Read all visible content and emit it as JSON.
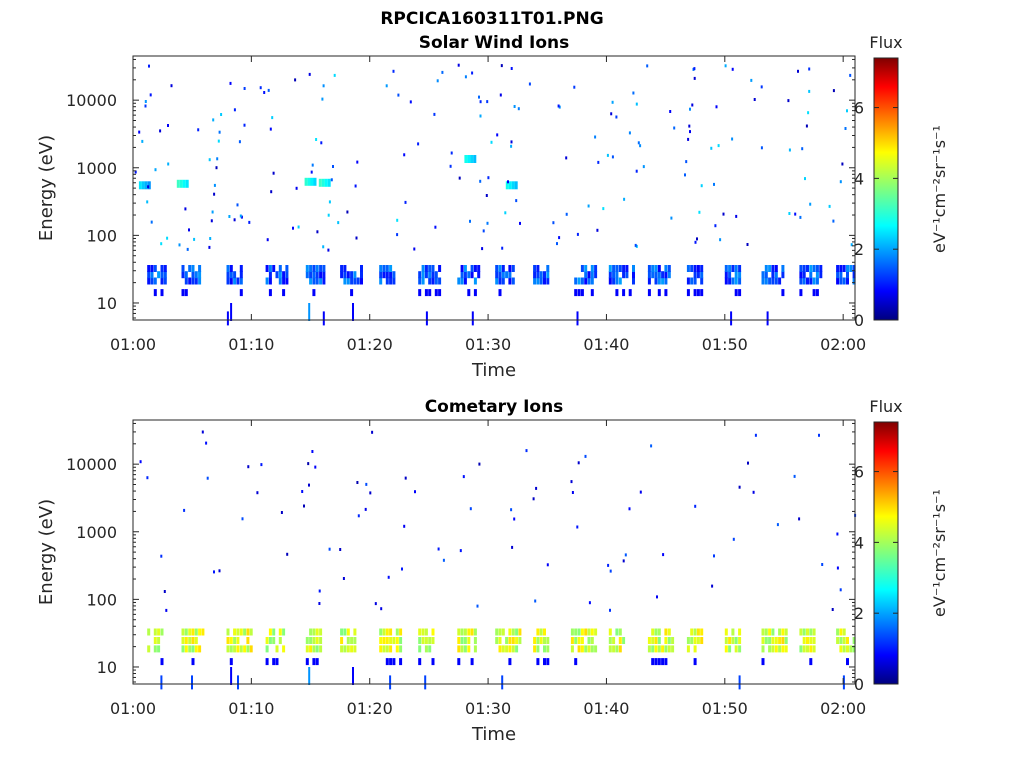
{
  "figure_title": "RPCICA160311T01.PNG",
  "colors": {
    "axis": "#262626",
    "background": "#ffffff",
    "colormap": "jet"
  },
  "chart_data": [
    {
      "type": "heatmap",
      "title": "Solar Wind Ions",
      "xlabel": "Time",
      "ylabel": "Energy (eV)",
      "x_range": [
        "01:00",
        "02:01"
      ],
      "x_ticks": [
        "01:00",
        "01:10",
        "01:20",
        "01:30",
        "01:40",
        "01:50",
        "02:00"
      ],
      "y_scale": "log",
      "y_range": [
        5.6,
        45000
      ],
      "y_ticks": [
        10,
        100,
        1000,
        10000
      ],
      "y_tick_labels": [
        "10",
        "100",
        "1000",
        "10000"
      ],
      "colorbar": {
        "label": "Flux",
        "units": "eV⁻¹cm⁻²sr⁻¹s⁻¹",
        "range": [
          0,
          7.4
        ],
        "ticks": [
          0,
          2,
          4,
          6
        ]
      },
      "bands": [
        {
          "energy_min": 19,
          "energy_max": 36,
          "flux": 1.5,
          "note": "main solar wind band, periodic ~2.5 min bursts"
        }
      ],
      "burst_starts_min": [
        1.2,
        4.1,
        7.9,
        11.2,
        14.6,
        17.5,
        20.8,
        24.1,
        27.4,
        30.6,
        33.8,
        37.0,
        40.2,
        43.5,
        46.8,
        50.0,
        53.1,
        56.3,
        59.4
      ],
      "upper_patches": [
        {
          "t_min": 0.5,
          "energy": 550,
          "flux": 2.6
        },
        {
          "t_min": 3.7,
          "energy": 580,
          "flux": 3.2
        },
        {
          "t_min": 14.5,
          "energy": 620,
          "flux": 3.1
        },
        {
          "t_min": 15.7,
          "energy": 600,
          "flux": 3.2
        },
        {
          "t_min": 28.0,
          "energy": 1350,
          "flux": 2.9
        },
        {
          "t_min": 31.5,
          "energy": 550,
          "flux": 2.9
        }
      ],
      "scatter_flux_range": [
        0.4,
        2.6
      ]
    },
    {
      "type": "heatmap",
      "title": "Cometary Ions",
      "xlabel": "Time",
      "ylabel": "Energy (eV)",
      "x_range": [
        "01:00",
        "02:01"
      ],
      "x_ticks": [
        "01:00",
        "01:10",
        "01:20",
        "01:30",
        "01:40",
        "01:50",
        "02:00"
      ],
      "y_scale": "log",
      "y_range": [
        5.6,
        45000
      ],
      "y_ticks": [
        10,
        100,
        1000,
        10000
      ],
      "y_tick_labels": [
        "10",
        "100",
        "1000",
        "10000"
      ],
      "colorbar": {
        "label": "Flux",
        "units": "eV⁻¹cm⁻²sr⁻¹s⁻¹",
        "range": [
          0,
          7.4
        ],
        "ticks": [
          0,
          2,
          4,
          6
        ]
      },
      "bands": [
        {
          "energy_min": 16,
          "energy_max": 38,
          "flux": 4.3,
          "note": "cometary ion band, periodic bursts"
        }
      ],
      "burst_starts_min": [
        1.2,
        4.1,
        7.9,
        11.2,
        14.6,
        17.5,
        20.8,
        24.1,
        27.4,
        30.6,
        33.8,
        37.0,
        40.2,
        43.5,
        46.8,
        50.0,
        53.1,
        56.3,
        59.4
      ],
      "upper_patches": [],
      "scatter_flux_range": [
        0.3,
        1.6
      ]
    }
  ]
}
